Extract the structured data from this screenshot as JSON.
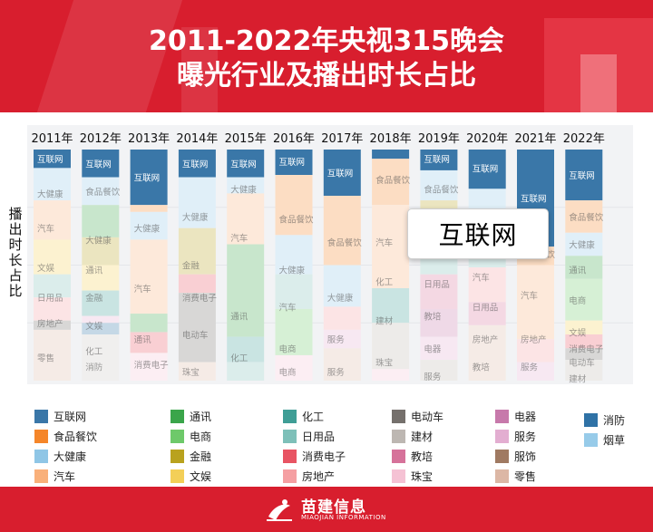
{
  "header": {
    "title_line1": "2011-2022年央视315晚会",
    "title_line2": "曝光行业及播出时长占比"
  },
  "footer": {
    "brand": "苗建信息",
    "brand_sub": "MIAOJIAN INFORMATION"
  },
  "tooltip": {
    "label": "互联网"
  },
  "chart_data": {
    "type": "bar",
    "stacked": true,
    "normalized": true,
    "ylabel": "播出时长占比",
    "xlabel": "",
    "categories": [
      "2011年",
      "2012年",
      "2013年",
      "2014年",
      "2015年",
      "2016年",
      "2017年",
      "2018年",
      "2019年",
      "2020年",
      "2021年",
      "2022年"
    ],
    "ylim": [
      0,
      100
    ],
    "legend_position": "bottom",
    "series": [
      {
        "name": "互联网",
        "color": "#3a77a8",
        "values": [
          8,
          12,
          24,
          12,
          12,
          11,
          20,
          4,
          9,
          17,
          42,
          22
        ]
      },
      {
        "name": "食品餐饮",
        "color": "#f5862a",
        "values": [
          0,
          20,
          0,
          0,
          0,
          0,
          0,
          0,
          0,
          0,
          0,
          0
        ]
      },
      {
        "name": "大健康",
        "color": "#8fc6e6",
        "values": [
          0,
          0,
          0,
          0,
          0,
          0,
          0,
          0,
          0,
          0,
          0,
          0
        ]
      },
      {
        "name": "汽车",
        "color": "#f9b07a",
        "values": [
          0,
          0,
          0,
          0,
          0,
          0,
          0,
          0,
          0,
          0,
          0,
          0
        ]
      },
      {
        "name": "通讯",
        "color": "#3aa54a",
        "values": [
          0,
          0,
          0,
          0,
          0,
          0,
          0,
          0,
          0,
          0,
          0,
          0
        ]
      },
      {
        "name": "电商",
        "color": "#6ec96a",
        "values": [
          0,
          0,
          0,
          0,
          0,
          0,
          0,
          0,
          0,
          0,
          0,
          0
        ]
      },
      {
        "name": "金融",
        "color": "#b9a21e",
        "values": [
          0,
          0,
          0,
          0,
          0,
          0,
          0,
          0,
          0,
          0,
          0,
          0
        ]
      },
      {
        "name": "文娱",
        "color": "#f3cf58",
        "values": [
          0,
          0,
          0,
          0,
          0,
          0,
          0,
          0,
          0,
          0,
          0,
          0
        ]
      },
      {
        "name": "化工",
        "color": "#3f9e96",
        "values": [
          0,
          0,
          0,
          0,
          0,
          0,
          0,
          0,
          0,
          0,
          0,
          0
        ]
      },
      {
        "name": "日用品",
        "color": "#7ec0b9",
        "values": [
          0,
          0,
          0,
          0,
          0,
          0,
          0,
          0,
          0,
          0,
          0,
          0
        ]
      },
      {
        "name": "消费电子",
        "color": "#e85463",
        "values": [
          0,
          0,
          0,
          0,
          0,
          0,
          0,
          0,
          0,
          0,
          0,
          0
        ]
      },
      {
        "name": "房地产",
        "color": "#f59fa2",
        "values": [
          0,
          0,
          0,
          0,
          0,
          0,
          0,
          0,
          0,
          0,
          0,
          0
        ]
      },
      {
        "name": "电动车",
        "color": "#75706c",
        "values": [
          0,
          0,
          0,
          0,
          0,
          0,
          0,
          0,
          0,
          0,
          0,
          0
        ]
      },
      {
        "name": "建材",
        "color": "#bdb7b2",
        "values": [
          0,
          0,
          0,
          0,
          0,
          0,
          0,
          0,
          0,
          0,
          0,
          0
        ]
      },
      {
        "name": "教培",
        "color": "#d6729a",
        "values": [
          0,
          0,
          0,
          0,
          0,
          0,
          0,
          0,
          0,
          0,
          0,
          0
        ]
      },
      {
        "name": "珠宝",
        "color": "#f5c2d4",
        "values": [
          0,
          0,
          0,
          0,
          0,
          0,
          0,
          0,
          0,
          0,
          0,
          0
        ]
      },
      {
        "name": "电器",
        "color": "#c779ab",
        "values": [
          0,
          0,
          0,
          0,
          0,
          0,
          0,
          0,
          0,
          0,
          0,
          0
        ]
      },
      {
        "name": "服务",
        "color": "#e3aed1",
        "values": [
          0,
          0,
          0,
          0,
          0,
          0,
          0,
          0,
          0,
          0,
          0,
          0
        ]
      },
      {
        "name": "服饰",
        "color": "#a07a62",
        "values": [
          0,
          0,
          0,
          0,
          0,
          0,
          0,
          0,
          0,
          0,
          0,
          0
        ]
      },
      {
        "name": "零售",
        "color": "#dcb7a5",
        "values": [
          0,
          0,
          0,
          0,
          0,
          0,
          0,
          0,
          0,
          0,
          0,
          0
        ]
      },
      {
        "name": "消防",
        "color": "#2f72a6",
        "values": [
          0,
          0,
          0,
          0,
          0,
          0,
          0,
          0,
          0,
          0,
          0,
          0
        ]
      },
      {
        "name": "烟草",
        "color": "#97cbe9",
        "values": [
          0,
          0,
          0,
          0,
          0,
          0,
          0,
          0,
          0,
          0,
          0,
          0
        ]
      }
    ],
    "faded_segments": [
      [
        [
          "大健康",
          14
        ],
        [
          "汽车",
          17
        ],
        [
          "文娱",
          15
        ],
        [
          "日用品",
          10
        ],
        [
          "房地产",
          10
        ],
        [
          "电动车",
          4
        ],
        [
          "零售",
          22
        ]
      ],
      [
        [
          "大健康",
          12
        ],
        [
          "通讯",
          14
        ],
        [
          "金融",
          12
        ],
        [
          "文娱",
          11
        ],
        [
          "化工",
          11
        ],
        [
          "服务",
          3
        ],
        [
          "消防",
          5
        ]
      ],
      [
        [
          "食品餐饮",
          3
        ],
        [
          "大健康",
          12
        ],
        [
          "汽车",
          32
        ],
        [
          "通讯",
          8
        ],
        [
          "消费电子",
          9
        ],
        [
          "珠宝",
          12
        ]
      ],
      [
        [
          "大健康",
          22
        ],
        [
          "金融",
          20
        ],
        [
          "消费电子",
          8
        ],
        [
          "电动车",
          30
        ],
        [
          "零售",
          8
        ]
      ],
      [
        [
          "大健康",
          7
        ],
        [
          "汽车",
          22
        ],
        [
          "通讯",
          40
        ],
        [
          "化工",
          11
        ],
        [
          "日用品",
          8
        ]
      ],
      [
        [
          "食品餐饮",
          26
        ],
        [
          "大健康",
          17
        ],
        [
          "日用品",
          15
        ],
        [
          "电商",
          20
        ],
        [
          "珠宝",
          11
        ]
      ],
      [
        [
          "食品餐饮",
          30
        ],
        [
          "大健康",
          18
        ],
        [
          "房地产",
          10
        ],
        [
          "服务",
          8
        ],
        [
          "零售",
          14
        ]
      ],
      [
        [
          "食品餐饮",
          20
        ],
        [
          "汽车",
          36
        ],
        [
          "化工",
          15
        ],
        [
          "建材",
          20
        ],
        [
          "珠宝",
          5
        ]
      ],
      [
        [
          "大健康",
          13
        ],
        [
          "金融",
          20
        ],
        [
          "日用品",
          12
        ],
        [
          "教培",
          15
        ],
        [
          "电器",
          12
        ],
        [
          "服务",
          10
        ],
        [
          "建材",
          9
        ]
      ],
      [
        [
          "大健康",
          12
        ],
        [
          "汽车",
          10
        ],
        [
          "日用品",
          12
        ],
        [
          "房地产",
          15
        ],
        [
          "教培",
          10
        ],
        [
          "零售",
          24
        ]
      ],
      [
        [
          "食品餐饮",
          8
        ],
        [
          "汽车",
          32
        ],
        [
          "房地产",
          10
        ],
        [
          "服务",
          8
        ]
      ],
      [
        [
          "食品餐饮",
          14
        ],
        [
          "大健康",
          10
        ],
        [
          "通讯",
          10
        ],
        [
          "电商",
          18
        ],
        [
          "文娱",
          6
        ],
        [
          "消费电子",
          6
        ],
        [
          "电动车",
          5
        ],
        [
          "建材",
          9
        ]
      ]
    ],
    "inside_labels": [
      [
        [
          4,
          "互联网"
        ],
        [
          19,
          "大健康"
        ],
        [
          34,
          "汽车"
        ],
        [
          51,
          "文娱"
        ],
        [
          64,
          "日用品"
        ],
        [
          75,
          "房地产"
        ],
        [
          90,
          "零售"
        ]
      ],
      [
        [
          6,
          "互联网"
        ],
        [
          18,
          "食品餐饮"
        ],
        [
          39,
          "大健康"
        ],
        [
          52,
          "通讯"
        ],
        [
          64,
          "金融"
        ],
        [
          76,
          "文娱"
        ],
        [
          87,
          "化工"
        ],
        [
          94,
          "消防"
        ]
      ],
      [
        [
          12,
          "互联网"
        ],
        [
          34,
          "大健康"
        ],
        [
          60,
          "汽车"
        ],
        [
          82,
          "通讯"
        ],
        [
          93,
          "消费电子"
        ]
      ],
      [
        [
          6,
          "互联网"
        ],
        [
          29,
          "大健康"
        ],
        [
          50,
          "金融"
        ],
        [
          64,
          "消费电子"
        ],
        [
          80,
          "电动车"
        ],
        [
          96,
          "珠宝"
        ]
      ],
      [
        [
          6,
          "互联网"
        ],
        [
          17,
          "大健康"
        ],
        [
          38,
          "汽车"
        ],
        [
          72,
          "通讯"
        ],
        [
          90,
          "化工"
        ]
      ],
      [
        [
          5,
          "互联网"
        ],
        [
          30,
          "食品餐饮"
        ],
        [
          52,
          "大健康"
        ],
        [
          68,
          "汽车"
        ],
        [
          86,
          "电商"
        ],
        [
          96,
          "电商"
        ]
      ],
      [
        [
          10,
          "互联网"
        ],
        [
          40,
          "食品餐饮"
        ],
        [
          64,
          "大健康"
        ],
        [
          82,
          "服务"
        ],
        [
          96,
          "服务"
        ]
      ],
      [
        [
          13,
          "食品餐饮"
        ],
        [
          40,
          "汽车"
        ],
        [
          57,
          "化工"
        ],
        [
          74,
          "建材"
        ],
        [
          92,
          "珠宝"
        ]
      ],
      [
        [
          4,
          "互联网"
        ],
        [
          17,
          "食品餐饮"
        ],
        [
          45,
          "金融"
        ],
        [
          58,
          "日用品"
        ],
        [
          72,
          "教培"
        ],
        [
          86,
          "电器"
        ],
        [
          98,
          "服务"
        ]
      ],
      [
        [
          8,
          "互联网"
        ],
        [
          55,
          "汽车"
        ],
        [
          68,
          "日用品"
        ],
        [
          82,
          "房地产"
        ],
        [
          94,
          "教培"
        ]
      ],
      [
        [
          21,
          "互联网"
        ],
        [
          45,
          "食品餐饮"
        ],
        [
          63,
          "汽车"
        ],
        [
          82,
          "房地产"
        ],
        [
          94,
          "服务"
        ]
      ],
      [
        [
          11,
          "互联网"
        ],
        [
          29,
          "食品餐饮"
        ],
        [
          41,
          "大健康"
        ],
        [
          52,
          "通讯"
        ],
        [
          65,
          "电商"
        ],
        [
          79,
          "文娱"
        ],
        [
          86,
          "消费电子"
        ],
        [
          92,
          "电动车"
        ],
        [
          99,
          "建材"
        ]
      ]
    ]
  }
}
